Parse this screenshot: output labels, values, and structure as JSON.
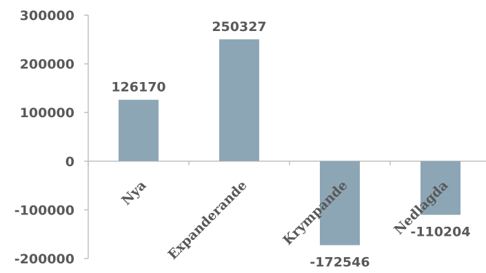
{
  "chart_data": {
    "type": "bar",
    "title": "",
    "xlabel": "",
    "ylabel": "",
    "categories": [
      "Nya",
      "Expanderande",
      "Krympande",
      "Nedlagda"
    ],
    "values": [
      126170,
      250327,
      -172546,
      -110204
    ],
    "data_labels": [
      "126170",
      "250327",
      "-172546",
      "-110204"
    ],
    "y_ticks": [
      300000,
      200000,
      100000,
      0,
      -100000,
      -200000
    ],
    "y_tick_labels": [
      "300000",
      "200000",
      "100000",
      "0",
      "-100000",
      "-200000"
    ],
    "ylim": [
      -200000,
      300000
    ],
    "grid": false,
    "legend": "none",
    "bar_color": "#8da6b6",
    "axis_color": "#bfbfbf",
    "text_color": "#595959"
  }
}
